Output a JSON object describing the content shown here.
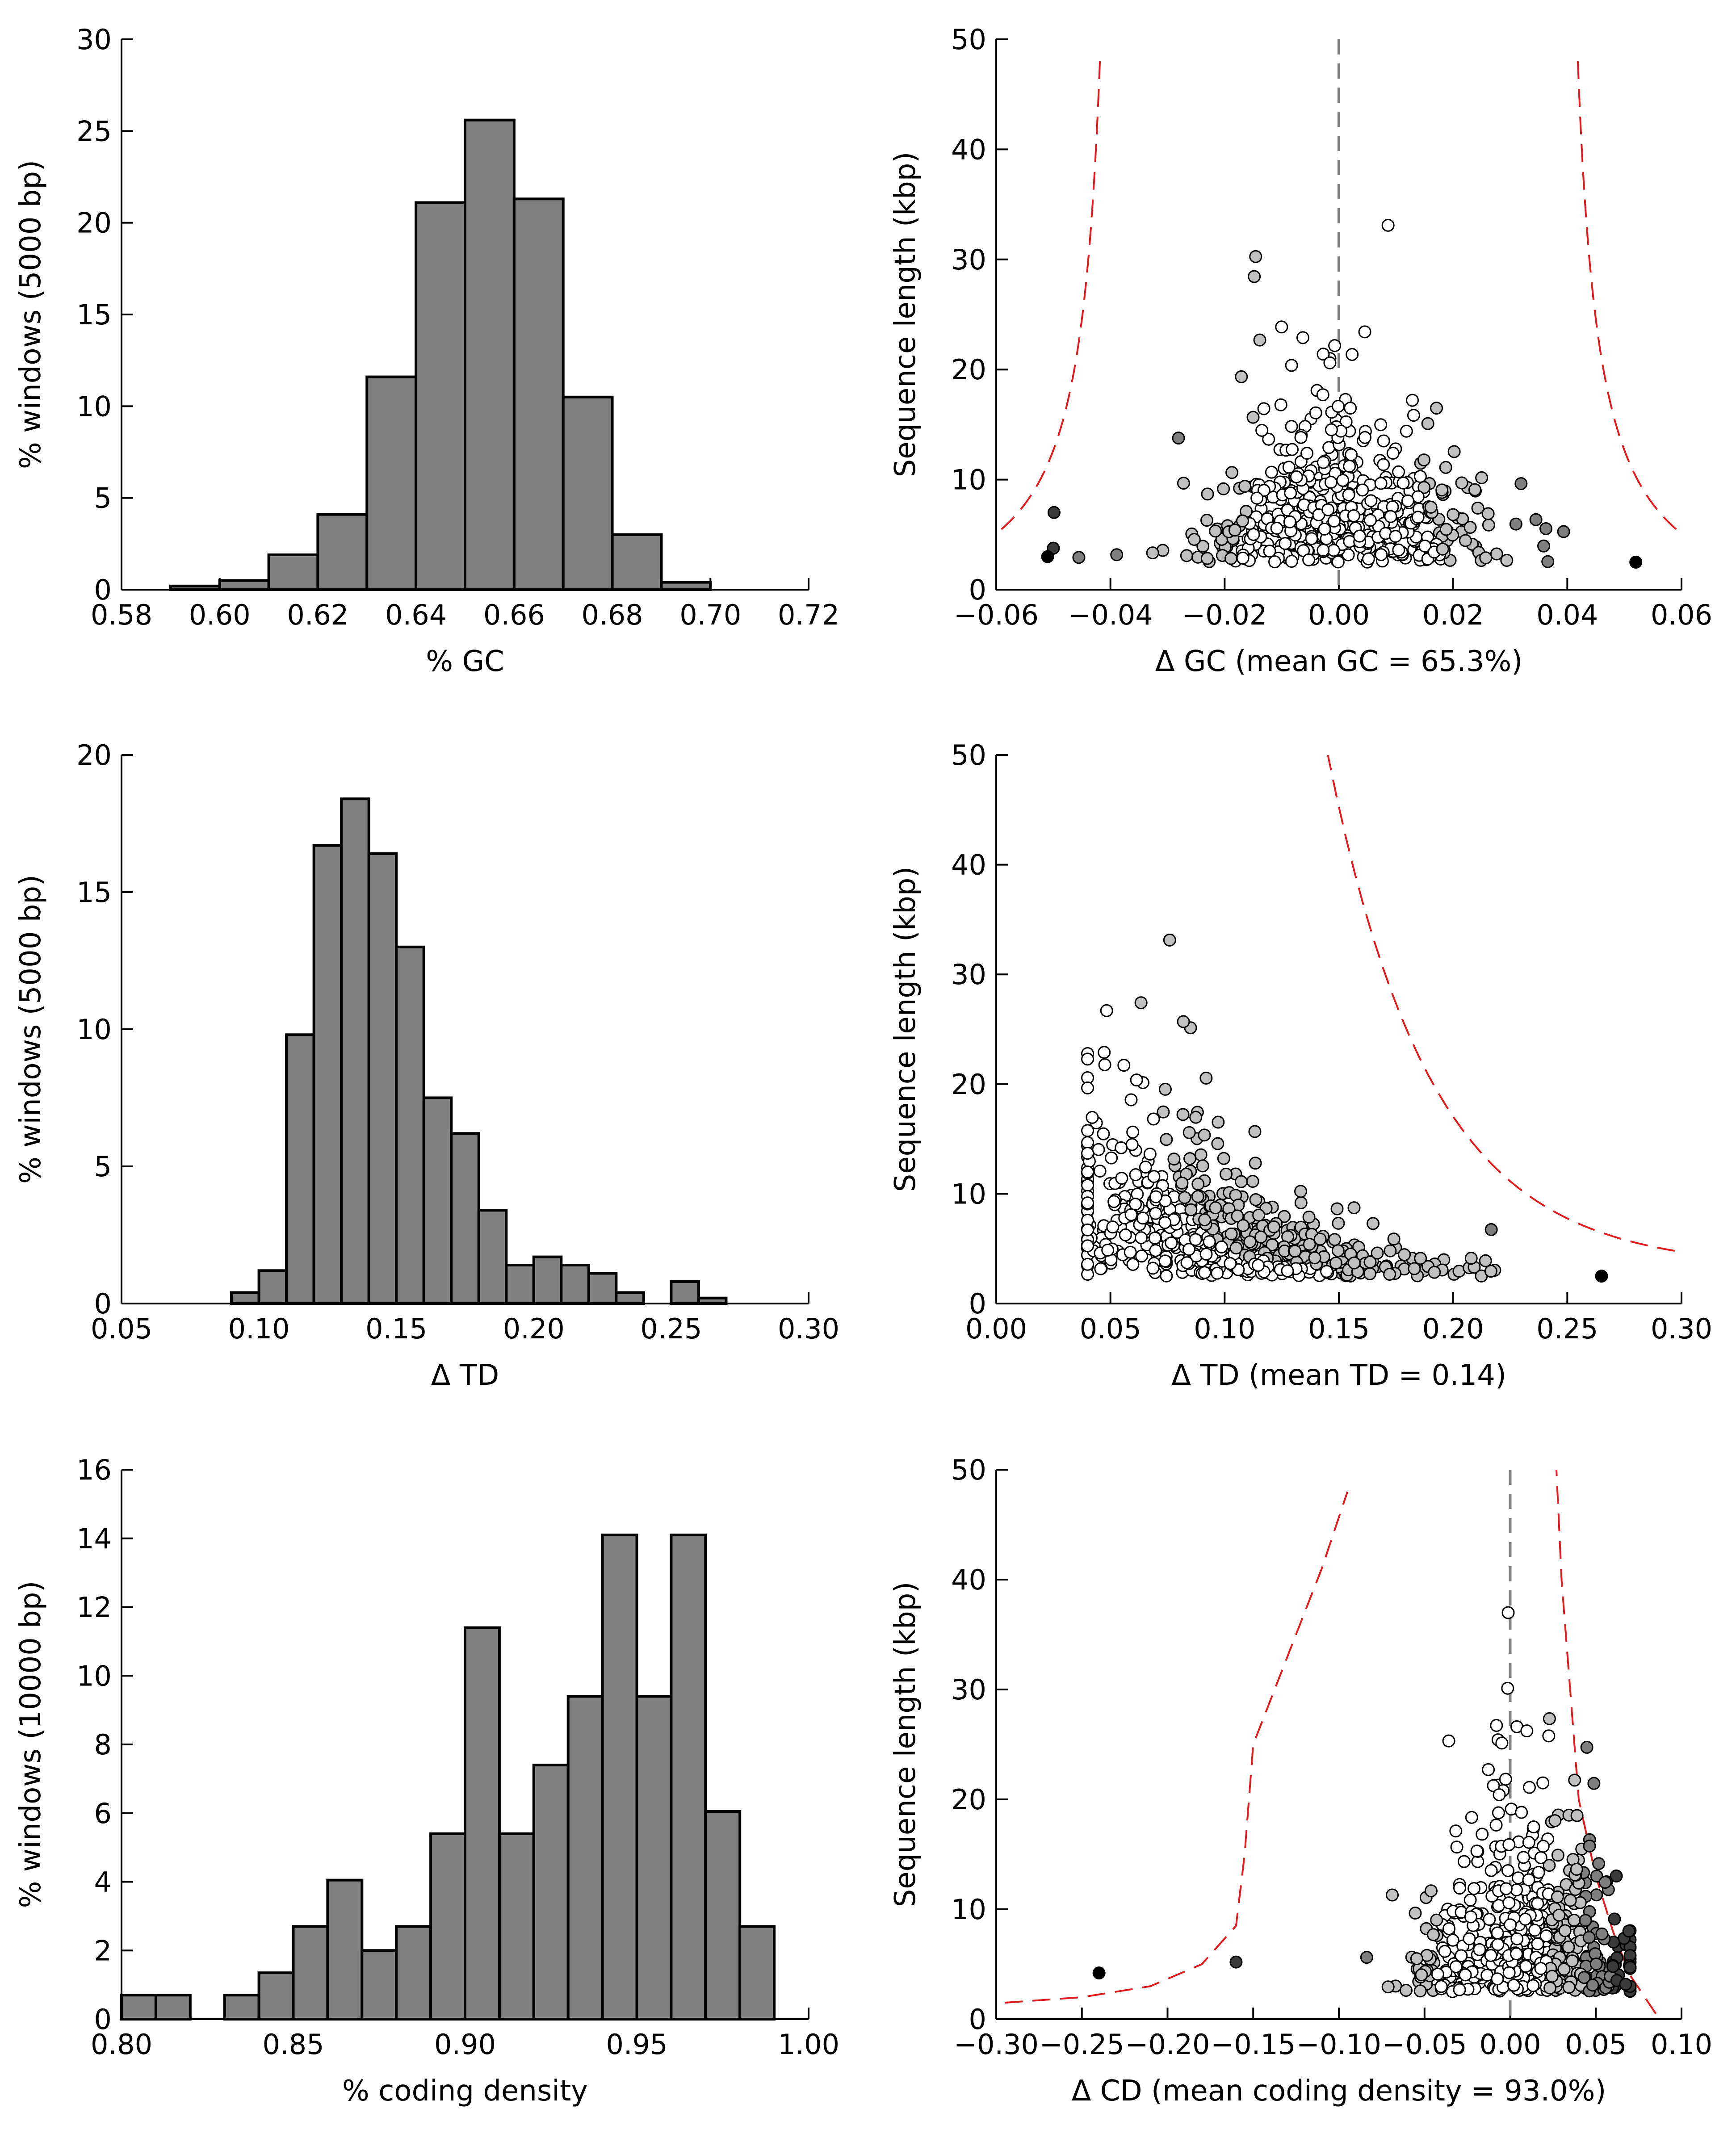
{
  "chart_data": [
    {
      "type": "bar",
      "panel": "gc-histogram",
      "xlabel": "% GC",
      "ylabel": "% windows (5000 bp)",
      "xlim": [
        0.58,
        0.72
      ],
      "ylim": [
        0,
        30
      ],
      "xticks": [
        "0.58",
        "0.60",
        "0.62",
        "0.64",
        "0.66",
        "0.68",
        "0.70",
        "0.72"
      ],
      "yticks": [
        "0",
        "5",
        "10",
        "15",
        "20",
        "25",
        "30"
      ],
      "bin_edges": [
        0.59,
        0.6,
        0.61,
        0.62,
        0.63,
        0.64,
        0.65,
        0.66,
        0.67,
        0.68,
        0.69,
        0.7
      ],
      "values": [
        0.2,
        0.5,
        1.9,
        4.1,
        11.6,
        21.1,
        25.6,
        21.3,
        10.5,
        3.0,
        0.4
      ],
      "bar_color": "#808080",
      "grid": false
    },
    {
      "type": "scatter",
      "panel": "gc-scatter",
      "xlabel": "Δ GC (mean GC = 65.3%)",
      "ylabel": "Sequence length (kbp)",
      "xlim": [
        -0.06,
        0.06
      ],
      "ylim": [
        0,
        50
      ],
      "xticks": [
        "−0.06",
        "−0.04",
        "−0.02",
        "0.00",
        "0.02",
        "0.04",
        "0.06"
      ],
      "yticks": [
        "0",
        "10",
        "20",
        "30",
        "40",
        "50"
      ],
      "zero_line": true,
      "reference_curve_color": "#e31a1c",
      "grid": false
    },
    {
      "type": "bar",
      "panel": "td-histogram",
      "xlabel": "Δ TD",
      "ylabel": "% windows (5000 bp)",
      "xlim": [
        0.05,
        0.3
      ],
      "ylim": [
        0,
        20
      ],
      "xticks": [
        "0.05",
        "0.10",
        "0.15",
        "0.20",
        "0.25",
        "0.30"
      ],
      "yticks": [
        "0",
        "5",
        "10",
        "15",
        "20"
      ],
      "bin_edges": [
        0.09,
        0.1,
        0.11,
        0.12,
        0.13,
        0.14,
        0.15,
        0.16,
        0.17,
        0.18,
        0.19,
        0.2,
        0.21,
        0.22,
        0.23,
        0.24,
        0.25,
        0.26,
        0.27
      ],
      "values": [
        0.4,
        1.2,
        9.8,
        16.7,
        18.4,
        16.4,
        13.0,
        7.5,
        6.2,
        3.4,
        1.4,
        1.7,
        1.4,
        1.1,
        0.4,
        0.0,
        0.8,
        0.2
      ],
      "bar_color": "#808080",
      "grid": false
    },
    {
      "type": "scatter",
      "panel": "td-scatter",
      "xlabel": "Δ TD (mean TD = 0.14)",
      "ylabel": "Sequence length (kbp)",
      "xlim": [
        0.0,
        0.3
      ],
      "ylim": [
        0,
        50
      ],
      "xticks": [
        "0.00",
        "0.05",
        "0.10",
        "0.15",
        "0.20",
        "0.25",
        "0.30"
      ],
      "yticks": [
        "0",
        "10",
        "20",
        "30",
        "40",
        "50"
      ],
      "zero_line": false,
      "reference_curve_color": "#e31a1c",
      "grid": false
    },
    {
      "type": "bar",
      "panel": "cd-histogram",
      "xlabel": "% coding density",
      "ylabel": "% windows (10000 bp)",
      "xlim": [
        0.8,
        1.0
      ],
      "ylim": [
        0,
        16
      ],
      "xticks": [
        "0.80",
        "0.85",
        "0.90",
        "0.95",
        "1.00"
      ],
      "yticks": [
        "0",
        "2",
        "4",
        "6",
        "8",
        "10",
        "12",
        "14",
        "16"
      ],
      "bin_edges": [
        0.8,
        0.81,
        0.82,
        0.83,
        0.84,
        0.85,
        0.86,
        0.87,
        0.88,
        0.89,
        0.9,
        0.91,
        0.92,
        0.93,
        0.94,
        0.95,
        0.96,
        0.97,
        0.98,
        0.99
      ],
      "values": [
        0.7,
        0.7,
        0.0,
        0.7,
        1.35,
        2.7,
        4.05,
        2.0,
        2.7,
        5.4,
        11.4,
        5.4,
        7.4,
        9.4,
        14.1,
        9.4,
        14.1,
        6.05,
        2.7
      ],
      "bar_color": "#808080",
      "grid": false
    },
    {
      "type": "scatter",
      "panel": "cd-scatter",
      "xlabel": "Δ CD (mean coding density = 93.0%)",
      "ylabel": "Sequence length (kbp)",
      "xlim": [
        -0.3,
        0.1
      ],
      "ylim": [
        0,
        50
      ],
      "xticks": [
        "−0.30",
        "−0.25",
        "−0.20",
        "−0.15",
        "−0.10",
        "−0.05",
        "0.00",
        "0.05",
        "0.10"
      ],
      "yticks": [
        "0",
        "10",
        "20",
        "30",
        "40",
        "50"
      ],
      "zero_line": true,
      "reference_curve_color": "#e31a1c",
      "grid": false
    }
  ]
}
